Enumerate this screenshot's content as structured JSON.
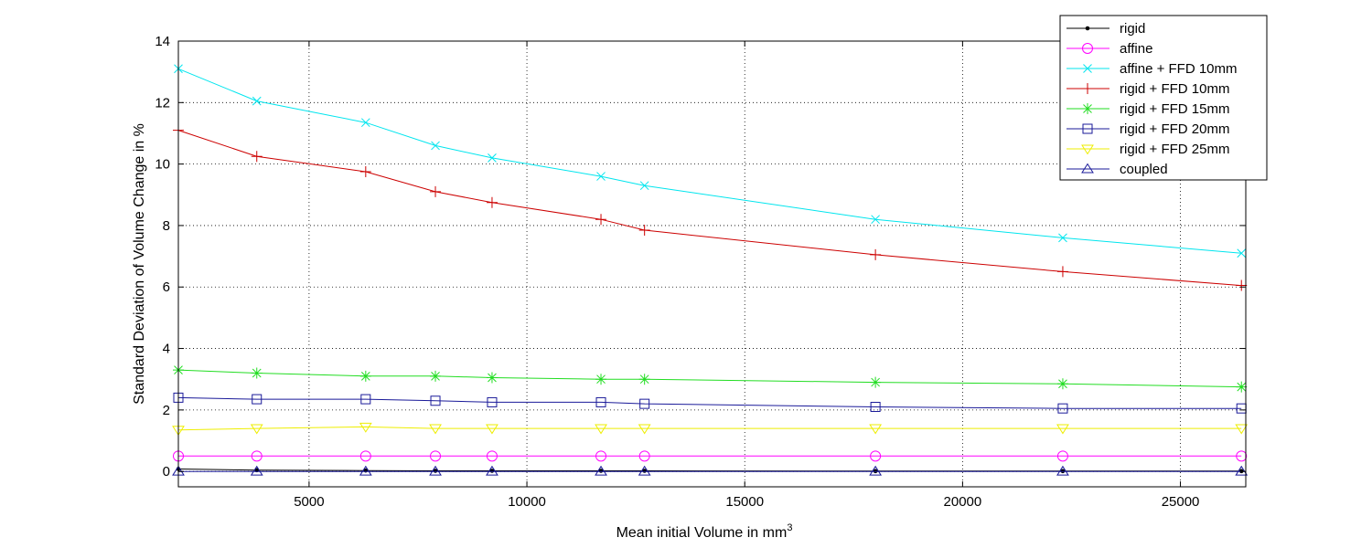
{
  "chart_data": {
    "type": "line",
    "title": "",
    "xlabel": "Mean initial Volume in mm",
    "xlabel_superscript": "3",
    "ylabel": "Standard Deviation of Volume Change in %",
    "xlim": [
      2000,
      26500
    ],
    "ylim": [
      -0.5,
      14
    ],
    "xticks": [
      5000,
      10000,
      15000,
      20000,
      25000
    ],
    "xtick_labels": [
      "5000",
      "10000",
      "15000",
      "20000",
      "25000"
    ],
    "yticks": [
      0,
      2,
      4,
      6,
      8,
      10,
      12,
      14
    ],
    "ytick_labels": [
      "0",
      "2",
      "4",
      "6",
      "8",
      "10",
      "12",
      "14"
    ],
    "grid": true,
    "legend_position": "top-right",
    "x": [
      2000,
      3800,
      6300,
      7900,
      9200,
      11700,
      12700,
      18000,
      22300,
      26400
    ],
    "series": [
      {
        "name": "rigid",
        "color": "#000000",
        "marker": "dot",
        "values": [
          0.08,
          0.04,
          0.03,
          0.02,
          0.02,
          0.02,
          0.02,
          0.01,
          0.01,
          0.01
        ]
      },
      {
        "name": "affine",
        "color": "#ff00ff",
        "marker": "circle",
        "values": [
          0.5,
          0.5,
          0.5,
          0.5,
          0.5,
          0.5,
          0.5,
          0.5,
          0.5,
          0.5
        ]
      },
      {
        "name": "affine + FFD 10mm",
        "color": "#00e5ee",
        "marker": "x",
        "values": [
          13.1,
          12.05,
          11.35,
          10.6,
          10.2,
          9.6,
          9.3,
          8.2,
          7.6,
          7.1
        ]
      },
      {
        "name": "rigid + FFD 10mm",
        "color": "#cc0000",
        "marker": "plus",
        "values": [
          11.1,
          10.25,
          9.75,
          9.1,
          8.75,
          8.2,
          7.85,
          7.05,
          6.5,
          6.05
        ]
      },
      {
        "name": "rigid + FFD 15mm",
        "color": "#22dd22",
        "marker": "star",
        "values": [
          3.3,
          3.2,
          3.1,
          3.1,
          3.05,
          3.0,
          3.0,
          2.9,
          2.85,
          2.75
        ]
      },
      {
        "name": "rigid + FFD 20mm",
        "color": "#1a1a99",
        "marker": "square",
        "values": [
          2.4,
          2.35,
          2.35,
          2.3,
          2.25,
          2.25,
          2.2,
          2.1,
          2.05,
          2.05
        ]
      },
      {
        "name": "rigid + FFD 25mm",
        "color": "#eeee00",
        "marker": "triangle-down",
        "values": [
          1.35,
          1.4,
          1.45,
          1.4,
          1.4,
          1.4,
          1.4,
          1.4,
          1.4,
          1.4
        ]
      },
      {
        "name": "coupled",
        "color": "#1a1a99",
        "marker": "triangle-up",
        "values": [
          0.0,
          0.0,
          0.0,
          0.0,
          0.0,
          0.0,
          0.0,
          0.0,
          0.0,
          0.0
        ]
      }
    ]
  }
}
